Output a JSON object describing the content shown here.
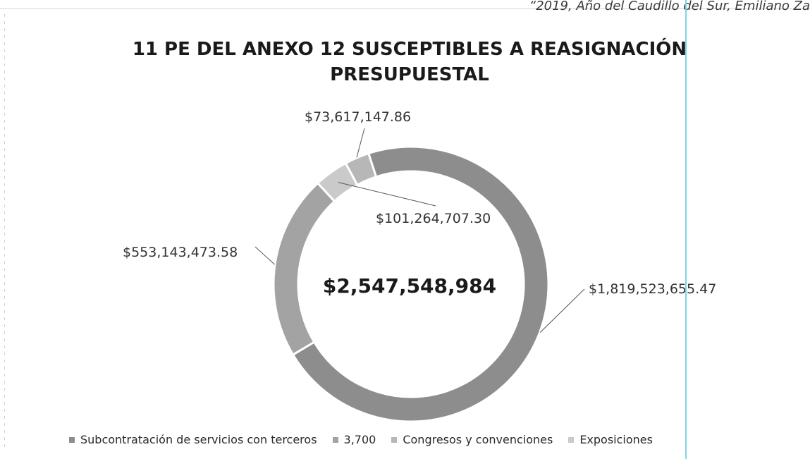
{
  "header": {
    "quote": "“2019, Año del Caudillo del Sur, Emiliano Za"
  },
  "chart_data": {
    "type": "pie",
    "title": "11 PE DEL ANEXO 12 SUSCEPTIBLES A REASIGNACIÓN PRESUPUESTAL",
    "center_label": "$2,547,548,984",
    "series": [
      {
        "name": "Subcontratación de servicios con terceros",
        "value": 1819523655.47,
        "label": "$1,819,523,655.47",
        "color": "#8d8d8d"
      },
      {
        "name": "3,700",
        "value": 553143473.58,
        "label": "$553,143,473.58",
        "color": "#a3a3a3"
      },
      {
        "name": "Congresos y convenciones",
        "value": 73617147.86,
        "label": "$73,617,147.86",
        "color": "#b7b7b7"
      },
      {
        "name": "Exposiciones",
        "value": 101264707.3,
        "label": "$101,264,707.30",
        "color": "#cacaca"
      }
    ],
    "legend_position": "bottom",
    "donut": true
  }
}
